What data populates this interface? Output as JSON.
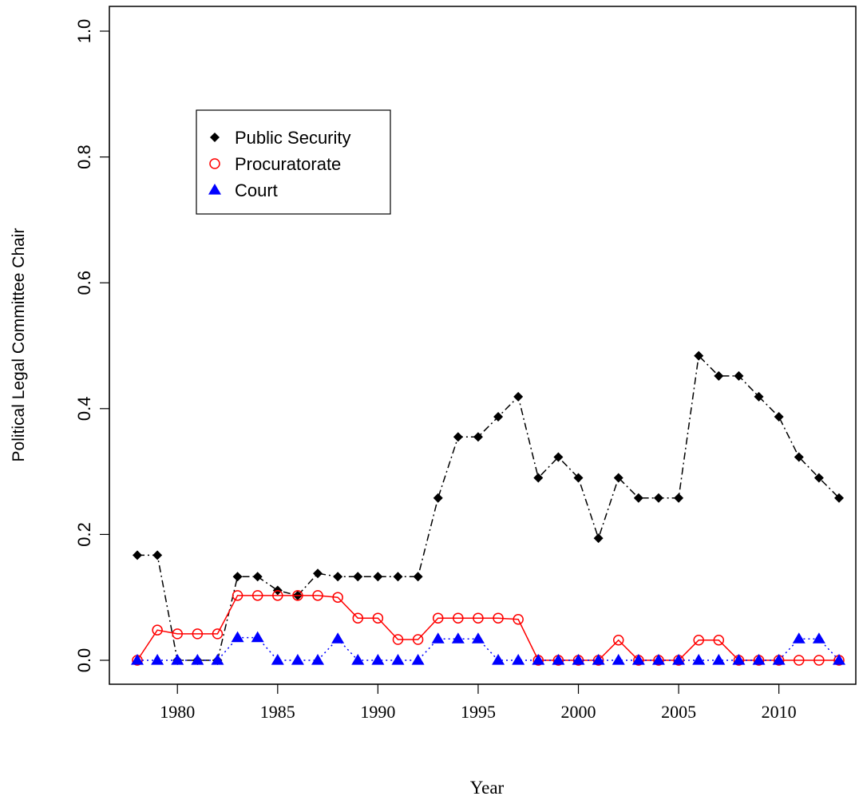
{
  "chart_data": {
    "type": "line",
    "title": "",
    "xlabel": "Year",
    "ylabel": "Political Legal Committee Chair",
    "xlim": [
      1978,
      2013
    ],
    "ylim": [
      0,
      1.0
    ],
    "x_ticks": [
      "1980",
      "1985",
      "1990",
      "1995",
      "2000",
      "2005",
      "2010"
    ],
    "y_ticks": [
      "0.0",
      "0.2",
      "0.4",
      "0.6",
      "0.8",
      "1.0"
    ],
    "legend_position": "top-left",
    "grid": false,
    "x": [
      1978,
      1979,
      1980,
      1981,
      1982,
      1983,
      1984,
      1985,
      1986,
      1987,
      1988,
      1989,
      1990,
      1991,
      1992,
      1993,
      1994,
      1995,
      1996,
      1997,
      1998,
      1999,
      2000,
      2001,
      2002,
      2003,
      2004,
      2005,
      2006,
      2007,
      2008,
      2009,
      2010,
      2011,
      2012,
      2013
    ],
    "series": [
      {
        "name": "Public Security",
        "color": "#000000",
        "marker": "diamond",
        "line": "dash-dot",
        "values": [
          0.167,
          0.167,
          0.0,
          0.0,
          0.0,
          0.133,
          0.133,
          0.111,
          0.103,
          0.138,
          0.133,
          0.133,
          0.133,
          0.133,
          0.133,
          0.258,
          0.355,
          0.355,
          0.387,
          0.419,
          0.29,
          0.323,
          0.29,
          0.194,
          0.29,
          0.258,
          0.258,
          0.258,
          0.484,
          0.452,
          0.452,
          0.419,
          0.387,
          0.323,
          0.29,
          0.258
        ]
      },
      {
        "name": "Procuratorate",
        "color": "#ff0000",
        "marker": "circle-open",
        "line": "solid",
        "values": [
          0.0,
          0.048,
          0.042,
          0.042,
          0.042,
          0.103,
          0.103,
          0.103,
          0.103,
          0.103,
          0.1,
          0.067,
          0.067,
          0.033,
          0.033,
          0.067,
          0.067,
          0.067,
          0.067,
          0.065,
          0.0,
          0.0,
          0.0,
          0.0,
          0.032,
          0.0,
          0.0,
          0.0,
          0.032,
          0.032,
          0.0,
          0.0,
          0.0,
          0.0,
          0.0,
          0.0
        ]
      },
      {
        "name": "Court",
        "color": "#0000ff",
        "marker": "triangle",
        "line": "dotted",
        "values": [
          0.0,
          0.0,
          0.0,
          0.0,
          0.0,
          0.036,
          0.036,
          0.0,
          0.0,
          0.0,
          0.034,
          0.0,
          0.0,
          0.0,
          0.0,
          0.034,
          0.034,
          0.034,
          0.0,
          0.0,
          0.0,
          0.0,
          0.0,
          0.0,
          0.0,
          0.0,
          0.0,
          0.0,
          0.0,
          0.0,
          0.0,
          0.0,
          0.0,
          0.034,
          0.034,
          0.0
        ]
      }
    ]
  }
}
